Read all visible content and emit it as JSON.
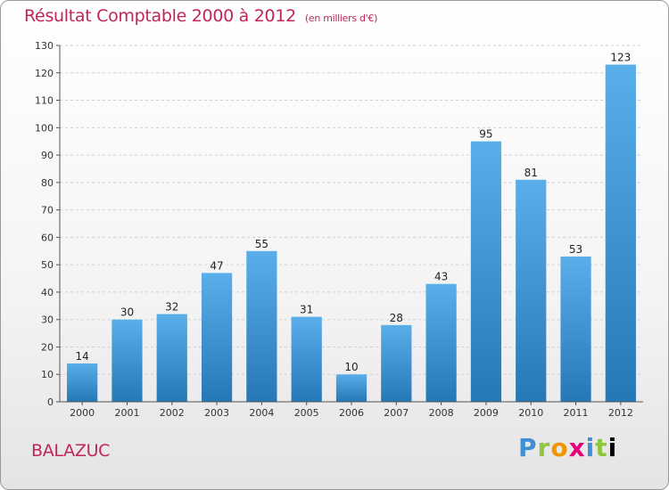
{
  "header": {
    "title": "Résultat Comptable 2000 à 2012",
    "subtitle": "(en milliers d'€)"
  },
  "footer": {
    "place": "BALAZUC",
    "logo_text": "Proxiti"
  },
  "colors": {
    "title": "#c0245c",
    "bar_top": "#5aaeea",
    "bar_bottom": "#2677b6",
    "grid": "#cfcfcf"
  },
  "chart_data": {
    "type": "bar",
    "title": "Résultat Comptable 2000 à 2012",
    "subtitle": "(en milliers d'€)",
    "categories": [
      "2000",
      "2001",
      "2002",
      "2003",
      "2004",
      "2005",
      "2006",
      "2007",
      "2008",
      "2009",
      "2010",
      "2011",
      "2012"
    ],
    "values": [
      14,
      30,
      32,
      47,
      55,
      31,
      10,
      28,
      43,
      95,
      81,
      53,
      123
    ],
    "ylim": [
      0,
      130
    ],
    "yticks": [
      0,
      10,
      20,
      30,
      40,
      50,
      60,
      70,
      80,
      90,
      100,
      110,
      120,
      130
    ],
    "grid": true,
    "data_labels": true
  }
}
